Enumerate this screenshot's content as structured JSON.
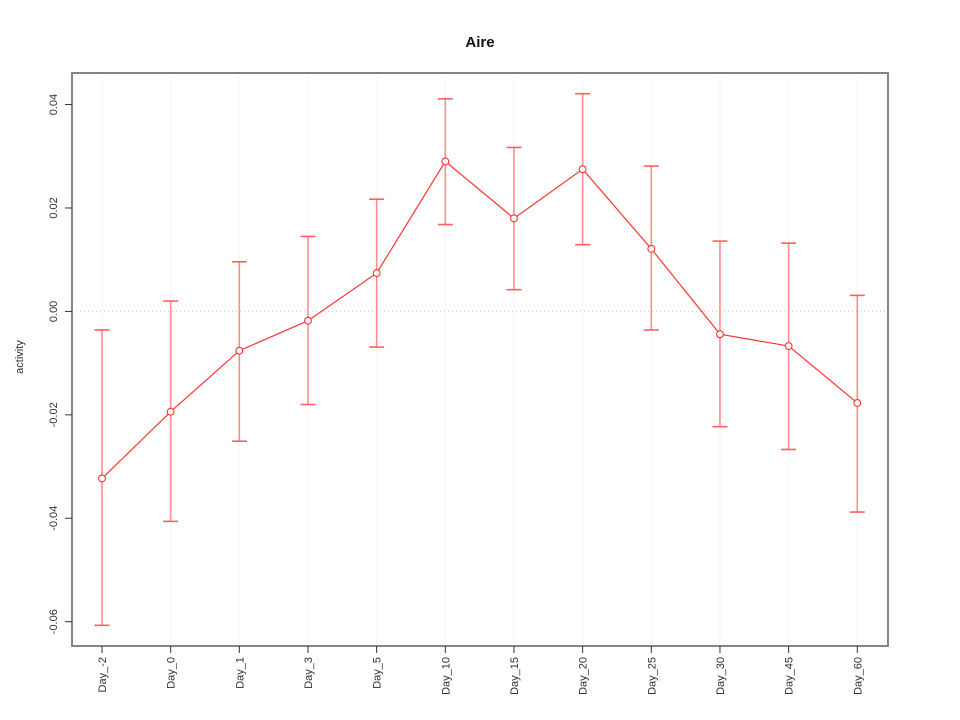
{
  "chart_data": {
    "type": "line",
    "title": "Aire",
    "xlabel": "",
    "ylabel": "activity",
    "categories": [
      "Day_-2",
      "Day_0",
      "Day_1",
      "Day_3",
      "Day_5",
      "Day_10",
      "Day_15",
      "Day_20",
      "Day_25",
      "Day_30",
      "Day_45",
      "Day_60"
    ],
    "series": [
      {
        "name": "activity",
        "values": [
          -0.0323,
          -0.0194,
          -0.0076,
          -0.0018,
          0.0074,
          0.029,
          0.018,
          0.0275,
          0.0121,
          -0.0044,
          -0.0067,
          -0.0177
        ],
        "error_upper": [
          -0.0036,
          0.002,
          0.0096,
          0.0145,
          0.0217,
          0.0411,
          0.0317,
          0.0421,
          0.0281,
          0.0136,
          0.0132,
          0.0031
        ],
        "error_lower": [
          -0.0607,
          -0.0406,
          -0.0251,
          -0.018,
          -0.0069,
          0.0168,
          0.0042,
          0.0129,
          -0.0036,
          -0.0223,
          -0.0267,
          -0.0388
        ]
      }
    ],
    "yticks": [
      0.04,
      0.02,
      0,
      -0.02,
      -0.04,
      -0.06
    ],
    "ytick_labels": [
      "0.04",
      "0.02",
      "0.00",
      "-0.02",
      "-0.04",
      "-0.06"
    ],
    "ylim": [
      -0.0647,
      0.0461
    ],
    "grid": "vertical dotted gridline at each category; dotted horizontal line at zero",
    "legend": "none",
    "marker": "open-circle",
    "colors": {
      "line": "#ff3333",
      "point_fill": "#ffffff",
      "error_bar": "#ff8c8c",
      "error_cap": "#ff5f5f",
      "grid": "#d9d9d9",
      "zero_line": "#cccccc",
      "frame": "#858585",
      "tick_text": "#303030",
      "title_text": "#111111",
      "background": "#ffffff"
    }
  }
}
